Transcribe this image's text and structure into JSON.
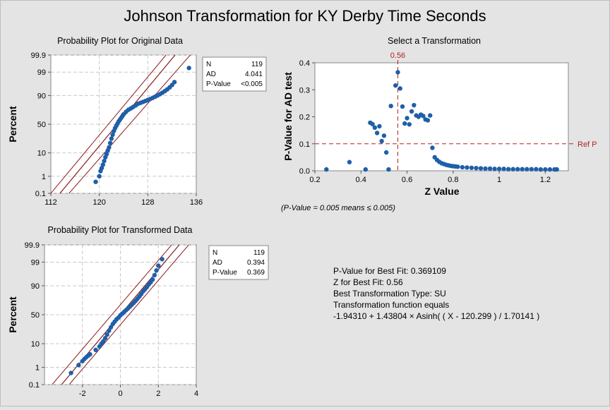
{
  "title": "Johnson Transformation for KY Derby Time Seconds",
  "plot_original": {
    "subtitle": "Probability Plot for Original Data",
    "ylabel": "Percent",
    "stats": [
      {
        "label": "N",
        "value": "119"
      },
      {
        "label": "AD",
        "value": "4.041"
      },
      {
        "label": "P-Value",
        "value": "<0.005"
      }
    ]
  },
  "plot_transformed": {
    "subtitle": "Probability Plot for Transformed Data",
    "ylabel": "Percent",
    "stats": [
      {
        "label": "N",
        "value": "119"
      },
      {
        "label": "AD",
        "value": "0.394"
      },
      {
        "label": "P-Value",
        "value": "0.369"
      }
    ]
  },
  "plot_select": {
    "subtitle": "Select a Transformation",
    "xlabel": "Z Value",
    "ylabel": "P-Value for AD test",
    "ref_label": "Ref P",
    "z_marker_label": "0.56",
    "note": "(P-Value = 0.005 means ≤ 0.005)"
  },
  "summary": [
    "P-Value for Best Fit: 0.369109",
    "Z for Best Fit: 0.56",
    "Best Transformation Type: SU",
    "Transformation function equals",
    "-1.94310 + 1.43804 × Asinh( ( X - 120.299 ) / 1.70141 )"
  ],
  "colors": {
    "points": "#1f5fa8",
    "fit_lines": "#8b1a1a",
    "reference": "#b22222",
    "grid": "#c8c8c8",
    "background": "#e4e4e4",
    "plot_area": "#ffffff"
  },
  "chart_data": [
    {
      "type": "scatter",
      "name": "Probability Plot for Original Data",
      "xlim": [
        112,
        136
      ],
      "xticks": [
        112,
        120,
        128,
        136
      ],
      "yticks": [
        "0.1",
        "1",
        "10",
        "50",
        "90",
        "99",
        "99.9"
      ],
      "ylabel": "Percent",
      "y_scale": "normal-probability",
      "grid": true,
      "fit_line": {
        "points": [
          [
            113.5,
            0.1
          ],
          [
            132.5,
            99.9
          ]
        ]
      },
      "ci_lines": [
        {
          "points": [
            [
              115,
              0.1
            ],
            [
              135,
              99.9
            ]
          ]
        },
        {
          "points": [
            [
              112,
              0.1
            ],
            [
              131,
              99.9
            ]
          ]
        }
      ],
      "x": [
        119.4,
        120.0,
        120.2,
        120.4,
        120.6,
        120.8,
        121.0,
        121.2,
        121.4,
        121.6,
        121.8,
        122.0,
        122.2,
        122.4,
        122.6,
        122.8,
        123.0,
        123.2,
        123.4,
        123.6,
        123.8,
        124.0,
        124.4,
        124.8,
        125.2,
        125.6,
        126.0,
        126.4,
        126.8,
        127.2,
        127.6,
        128.0,
        128.4,
        128.8,
        129.2,
        129.6,
        130.0,
        130.4,
        130.8,
        131.2,
        131.6,
        132.0,
        132.4,
        134.8
      ],
      "y": [
        0.5,
        1.0,
        1.8,
        2.5,
        3.5,
        5,
        7,
        9,
        12,
        15,
        20,
        26,
        32,
        38,
        43,
        47,
        51,
        55,
        58,
        61,
        64,
        67,
        71,
        74,
        76,
        78,
        80,
        82,
        83,
        84,
        85,
        86,
        87,
        88,
        89,
        90,
        91,
        92,
        93,
        94,
        95,
        96,
        97,
        99.4
      ]
    },
    {
      "type": "scatter",
      "name": "Select a Transformation",
      "xlim": [
        0.2,
        1.3
      ],
      "ylim": [
        0,
        0.4
      ],
      "xticks": [
        0.2,
        0.4,
        0.6,
        0.8,
        1.0,
        1.2
      ],
      "yticks": [
        0.0,
        0.1,
        0.2,
        0.3,
        0.4
      ],
      "xlabel": "Z Value",
      "ylabel": "P-Value for AD test",
      "ref_line_y": 0.1,
      "best_z": 0.56,
      "grid": false,
      "x": [
        0.25,
        0.35,
        0.42,
        0.44,
        0.45,
        0.46,
        0.47,
        0.48,
        0.49,
        0.5,
        0.51,
        0.52,
        0.53,
        0.55,
        0.56,
        0.57,
        0.58,
        0.59,
        0.6,
        0.61,
        0.62,
        0.63,
        0.64,
        0.65,
        0.66,
        0.67,
        0.68,
        0.69,
        0.7,
        0.71,
        0.72,
        0.73,
        0.74,
        0.75,
        0.76,
        0.77,
        0.78,
        0.79,
        0.8,
        0.81,
        0.82,
        0.84,
        0.86,
        0.88,
        0.9,
        0.92,
        0.94,
        0.96,
        0.98,
        1.0,
        1.02,
        1.04,
        1.06,
        1.08,
        1.1,
        1.12,
        1.14,
        1.16,
        1.18,
        1.2,
        1.22,
        1.24,
        1.25
      ],
      "y": [
        0.005,
        0.032,
        0.005,
        0.178,
        0.173,
        0.16,
        0.14,
        0.165,
        0.11,
        0.13,
        0.068,
        0.005,
        0.24,
        0.316,
        0.365,
        0.305,
        0.238,
        0.175,
        0.195,
        0.172,
        0.22,
        0.243,
        0.205,
        0.2,
        0.208,
        0.203,
        0.19,
        0.187,
        0.205,
        0.085,
        0.05,
        0.04,
        0.033,
        0.028,
        0.025,
        0.022,
        0.02,
        0.018,
        0.017,
        0.016,
        0.015,
        0.013,
        0.012,
        0.011,
        0.01,
        0.009,
        0.008,
        0.008,
        0.007,
        0.007,
        0.007,
        0.006,
        0.006,
        0.006,
        0.006,
        0.006,
        0.006,
        0.006,
        0.005,
        0.005,
        0.005,
        0.005,
        0.005
      ]
    },
    {
      "type": "scatter",
      "name": "Probability Plot for Transformed Data",
      "xlim": [
        -4,
        4
      ],
      "xticks": [
        -2,
        0,
        2,
        4
      ],
      "yticks": [
        "0.1",
        "1",
        "10",
        "50",
        "90",
        "99",
        "99.9"
      ],
      "ylabel": "Percent",
      "y_scale": "normal-probability",
      "grid": true,
      "fit_line": {
        "points": [
          [
            -3.1,
            0.1
          ],
          [
            3.1,
            99.9
          ]
        ]
      },
      "ci_lines": [
        {
          "points": [
            [
              -3.6,
              0.1
            ],
            [
              2.7,
              99.9
            ]
          ]
        },
        {
          "points": [
            [
              -2.7,
              0.1
            ],
            [
              3.6,
              99.9
            ]
          ]
        }
      ],
      "x": [
        -2.6,
        -2.2,
        -2.0,
        -1.9,
        -1.8,
        -1.7,
        -1.6,
        -1.3,
        -1.1,
        -1.0,
        -0.9,
        -0.8,
        -0.7,
        -0.6,
        -0.5,
        -0.4,
        -0.3,
        -0.2,
        -0.1,
        0.0,
        0.1,
        0.2,
        0.3,
        0.4,
        0.5,
        0.6,
        0.7,
        0.8,
        0.9,
        1.0,
        1.1,
        1.2,
        1.3,
        1.4,
        1.5,
        1.6,
        1.7,
        1.8,
        1.9,
        2.0,
        2.2
      ],
      "y": [
        0.5,
        1.3,
        2.0,
        2.5,
        3.0,
        3.5,
        4.0,
        6,
        8,
        10,
        12,
        15,
        19,
        24,
        29,
        34,
        38,
        42,
        45,
        49,
        52,
        55,
        58,
        61,
        64,
        67,
        70,
        73,
        76,
        79,
        82,
        85,
        87,
        89,
        91,
        92.5,
        94,
        96,
        97.5,
        98.5,
        99.3
      ]
    }
  ]
}
